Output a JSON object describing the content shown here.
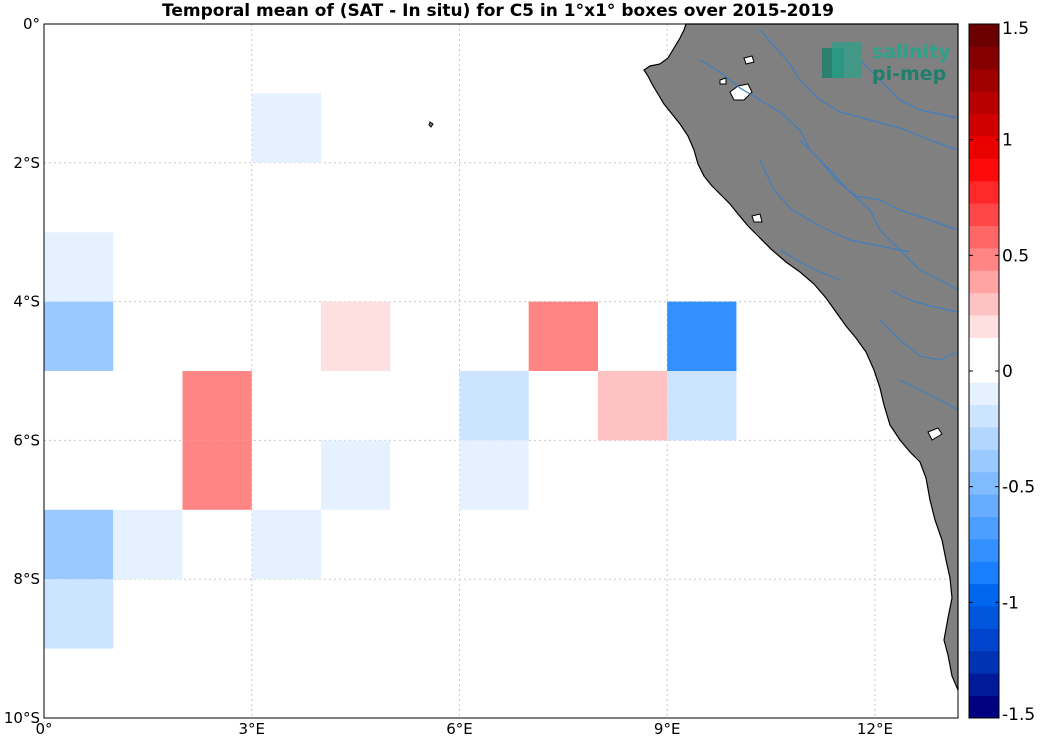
{
  "title": "Temporal mean of (SAT - In situ) for C5 in 1°x1° boxes over 2015-2019",
  "logo": {
    "line1": "salinity",
    "line2": "pi-mep"
  },
  "x_tick_labels": [
    "0°",
    "3°E",
    "6°E",
    "9°E",
    "12°E"
  ],
  "y_tick_labels": [
    "0°",
    "2°S",
    "4°S",
    "6°S",
    "8°S",
    "10°S"
  ],
  "colorbar": {
    "range": [
      -1.5,
      1.5
    ],
    "tick_labels": [
      "1.5",
      "1",
      "0.5",
      "0",
      "-0.5",
      "-1",
      "-1.5"
    ],
    "tick_values": [
      1.5,
      1,
      0.5,
      0,
      -0.5,
      -1,
      -1.5
    ],
    "colors_bottom_to_top": [
      "#000080",
      "#001a99",
      "#0033b3",
      "#0044cc",
      "#0055dd",
      "#0066ee",
      "#1a7fff",
      "#3390ff",
      "#4d9fff",
      "#66adff",
      "#80bbff",
      "#99c9ff",
      "#b3d6ff",
      "#cce4ff",
      "#e6f1ff",
      "#ffffff",
      "#ffffff",
      "#ffe0e0",
      "#ffc2c2",
      "#ffa3a3",
      "#ff8585",
      "#ff6666",
      "#ff4747",
      "#ff2929",
      "#ff0a0a",
      "#eb0000",
      "#d10000",
      "#b80000",
      "#9e0000",
      "#850000",
      "#6b0000"
    ]
  },
  "chart_data": {
    "type": "heatmap",
    "title": "Temporal mean of (SAT - In situ) for C5 in 1°x1° boxes over 2015-2019",
    "xlim_lon_E": [
      0,
      13.2
    ],
    "ylim_lat": [
      -10,
      0
    ],
    "grid": true,
    "cell_size_deg": 1,
    "color_range": [
      -1.5,
      1.5
    ],
    "cells": [
      {
        "lon": 3,
        "lat": -1,
        "value": -0.1
      },
      {
        "lon": 0,
        "lat": -3,
        "value": -0.1
      },
      {
        "lon": 0,
        "lat": -4,
        "value": -0.35
      },
      {
        "lon": 4,
        "lat": -4,
        "value": 0.15
      },
      {
        "lon": 7,
        "lat": -4,
        "value": 0.45
      },
      {
        "lon": 9,
        "lat": -4,
        "value": -0.8
      },
      {
        "lon": 2,
        "lat": -5,
        "value": 0.45
      },
      {
        "lon": 6,
        "lat": -5,
        "value": -0.2
      },
      {
        "lon": 8,
        "lat": -5,
        "value": 0.25
      },
      {
        "lon": 9,
        "lat": -5,
        "value": -0.2
      },
      {
        "lon": 2,
        "lat": -6,
        "value": 0.45
      },
      {
        "lon": 4,
        "lat": -6,
        "value": -0.1
      },
      {
        "lon": 6,
        "lat": -6,
        "value": -0.1
      },
      {
        "lon": 0,
        "lat": -7,
        "value": -0.35
      },
      {
        "lon": 1,
        "lat": -7,
        "value": -0.1
      },
      {
        "lon": 3,
        "lat": -7,
        "value": -0.1
      },
      {
        "lon": 0,
        "lat": -8,
        "value": -0.2
      }
    ]
  },
  "colors": {
    "land": "#808080",
    "rivers": "#3f7fc0",
    "grid": "#c8c8c8"
  }
}
